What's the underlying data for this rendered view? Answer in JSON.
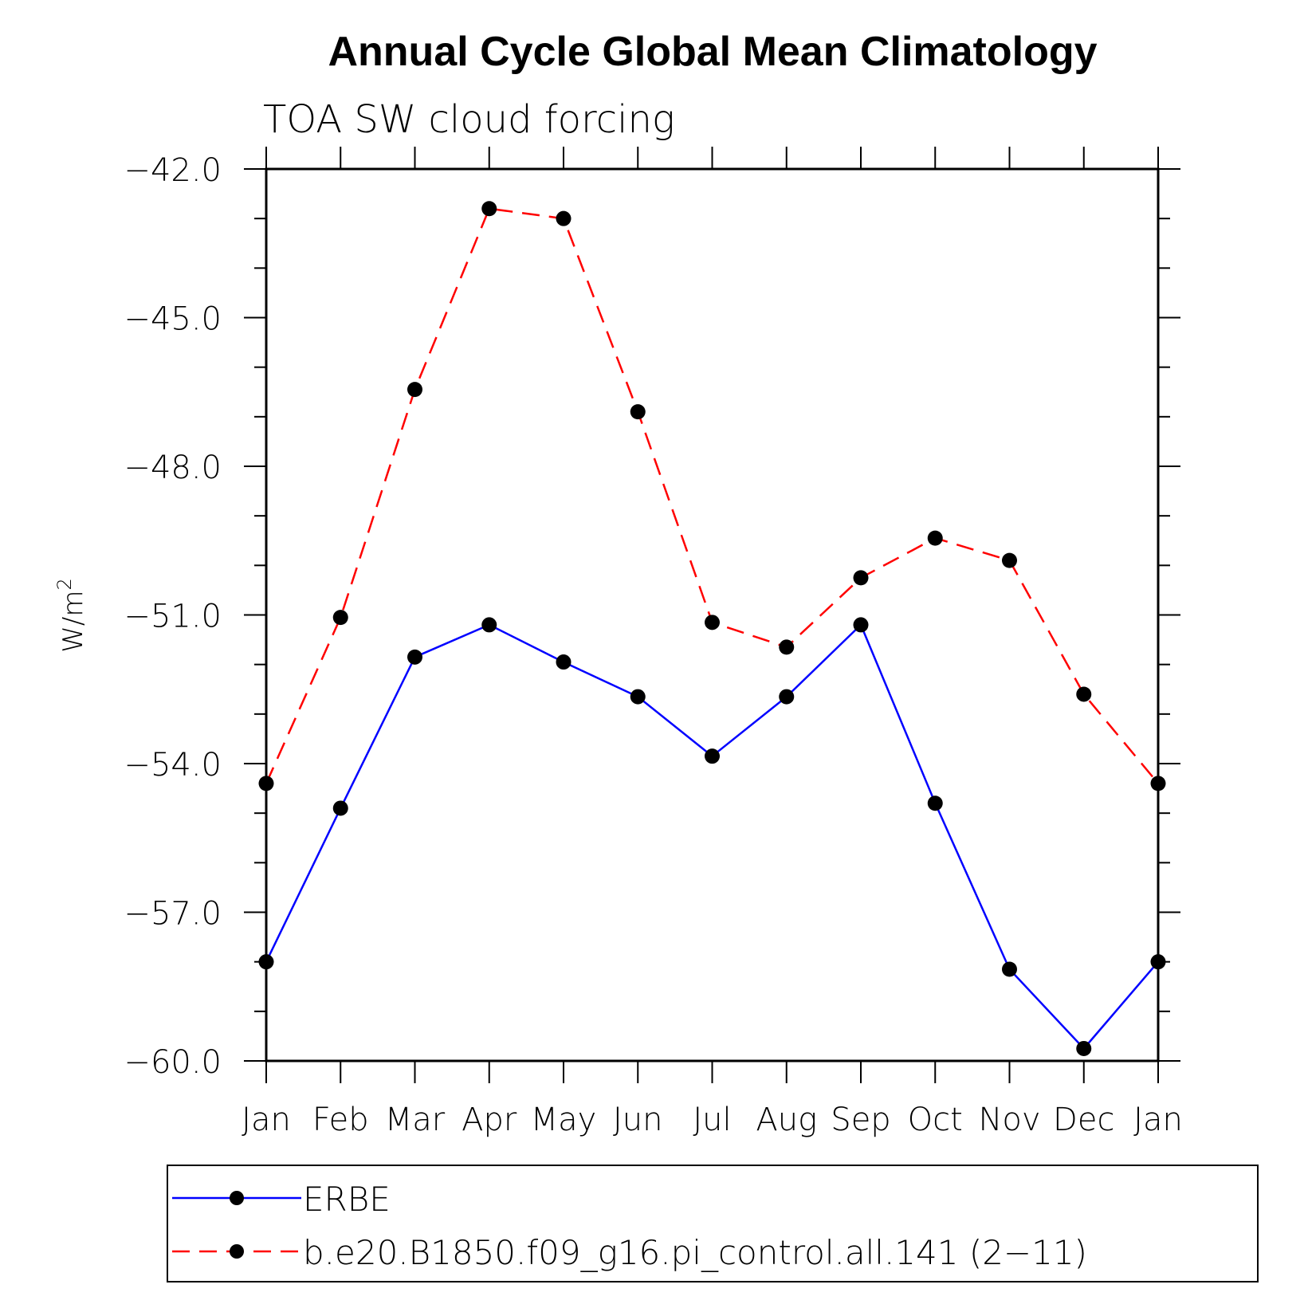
{
  "chart_data": {
    "type": "line",
    "title": "Annual Cycle Global Mean Climatology",
    "subtitle": "TOA SW cloud forcing",
    "ylabel": "W/m",
    "ylabel_superscript": "2",
    "categories": [
      "Jan",
      "Feb",
      "Mar",
      "Apr",
      "May",
      "Jun",
      "Jul",
      "Aug",
      "Sep",
      "Oct",
      "Nov",
      "Dec",
      "Jan"
    ],
    "ylim": [
      -60.0,
      -42.0
    ],
    "yticks": [
      "-42.0",
      "-45.0",
      "-48.0",
      "-51.0",
      "-54.0",
      "-57.0",
      "-60.0"
    ],
    "ytick_values": [
      -42,
      -45,
      -48,
      -51,
      -54,
      -57,
      -60
    ],
    "series": [
      {
        "name": "ERBE",
        "color": "#0000ff",
        "dashed": false,
        "values": [
          -58.0,
          -54.9,
          -51.85,
          -51.2,
          -51.95,
          -52.65,
          -53.85,
          -52.65,
          -51.2,
          -54.8,
          -58.15,
          -59.75,
          -58.0
        ]
      },
      {
        "name": "b.e20.B1850.f09_g16.pi_control.all.141 (2−11)",
        "color": "#ff0000",
        "dashed": true,
        "values": [
          -54.4,
          -51.05,
          -46.45,
          -42.8,
          -43.0,
          -46.9,
          -51.15,
          -51.65,
          -50.25,
          -49.45,
          -49.9,
          -52.6,
          -54.4
        ]
      }
    ],
    "legend": "bottom",
    "grid": false
  }
}
